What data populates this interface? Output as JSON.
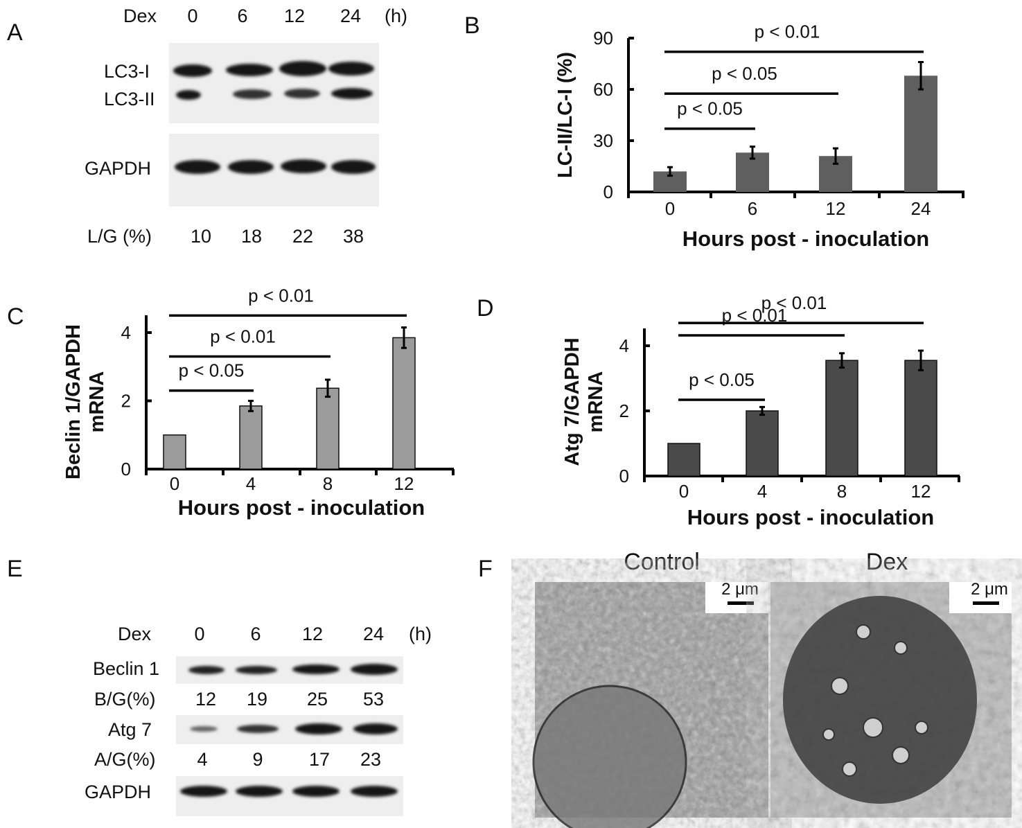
{
  "panel_letters": {
    "A": "A",
    "B": "B",
    "C": "C",
    "D": "D",
    "E": "E",
    "F": "F"
  },
  "panel_a": {
    "treatment_label": "Dex",
    "timepoints": [
      "0",
      "6",
      "12",
      "24"
    ],
    "unit": "(h)",
    "band_labels": {
      "lc3_i": "LC3-I",
      "lc3_ii": "LC3-II",
      "gapdh": "GAPDH"
    },
    "ratio_label": "L/G (%)",
    "ratios": [
      "10",
      "18",
      "22",
      "38"
    ]
  },
  "panel_e": {
    "treatment_label": "Dex",
    "timepoints": [
      "0",
      "6",
      "12",
      "24"
    ],
    "unit": "(h)",
    "band_labels": {
      "beclin1": "Beclin 1",
      "atg7": "Atg 7",
      "gapdh": "GAPDH"
    },
    "bg_label": "B/G(%)",
    "bg_ratios": [
      "12",
      "19",
      "25",
      "53"
    ],
    "ag_label": "A/G(%)",
    "ag_ratios": [
      "4",
      "9",
      "17",
      "23"
    ]
  },
  "panel_f": {
    "control_title": "Control",
    "dex_title": "Dex",
    "scale_bar": "2 μm"
  },
  "chart_data": [
    {
      "panel": "B",
      "type": "bar",
      "categories": [
        "0",
        "6",
        "12",
        "24"
      ],
      "values": [
        12,
        23,
        21,
        68
      ],
      "errors": [
        2.5,
        3.5,
        4.5,
        8
      ],
      "xlabel": "Hours post - inoculation",
      "ylabel": "LC-II/LC-I (%)",
      "ylim": [
        0,
        90
      ],
      "yticks": [
        "0",
        "30",
        "60",
        "90"
      ],
      "bar_color": "#5f5f5f",
      "significance": [
        {
          "from": 0,
          "to": 1,
          "level": 37,
          "label": "p < 0.05"
        },
        {
          "from": 0,
          "to": 2,
          "level": 57.5,
          "label": "p < 0.05"
        },
        {
          "from": 0,
          "to": 3,
          "level": 82,
          "label": "p < 0.01"
        }
      ]
    },
    {
      "panel": "C",
      "type": "bar",
      "categories": [
        "0",
        "4",
        "8",
        "12"
      ],
      "values": [
        1.0,
        1.85,
        2.37,
        3.85
      ],
      "errors": [
        0,
        0.15,
        0.25,
        0.3
      ],
      "xlabel": "Hours post - inoculation",
      "ylabel": "Beclin 1/GAPDH mRNA",
      "ylabel_lines": [
        "Beclin 1/GAPDH",
        "mRNA"
      ],
      "ylim": [
        0,
        4
      ],
      "yticks": [
        "0",
        "2",
        "4"
      ],
      "bar_color": "#9b9b9b",
      "significance": [
        {
          "from": 0,
          "to": 1,
          "level": 2.3,
          "label": "p < 0.05"
        },
        {
          "from": 0,
          "to": 2,
          "level": 3.3,
          "label": "p < 0.01"
        },
        {
          "from": 0,
          "to": 3,
          "level": 4.5,
          "label": "p < 0.01"
        }
      ]
    },
    {
      "panel": "D",
      "type": "bar",
      "categories": [
        "0",
        "4",
        "8",
        "12"
      ],
      "values": [
        1.0,
        2.0,
        3.55,
        3.55
      ],
      "errors": [
        0,
        0.12,
        0.22,
        0.3
      ],
      "xlabel": "Hours post - inoculation",
      "ylabel": "Atg 7/GAPDH mRNA",
      "ylabel_lines": [
        "Atg 7/GAPDH",
        "mRNA"
      ],
      "ylim": [
        0,
        4
      ],
      "yticks": [
        "0",
        "2",
        "4"
      ],
      "bar_color": "#4a4a4a",
      "significance": [
        {
          "from": 0,
          "to": 1,
          "level": 2.34,
          "label": "p < 0.05"
        },
        {
          "from": 0,
          "to": 2,
          "level": 4.32,
          "label": "p < 0.01"
        },
        {
          "from": 0,
          "to": 3,
          "level": 4.7,
          "label": "p < 0.01"
        }
      ]
    }
  ]
}
